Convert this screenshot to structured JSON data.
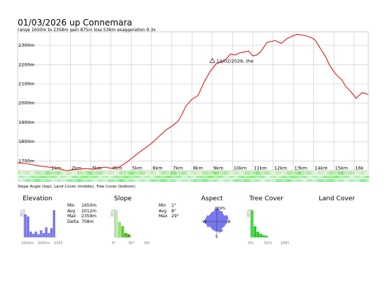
{
  "header": {
    "title": "01/03/2026 up Connemara",
    "stats": "range 1650m to 2358m  gain 875m  loss 536m  exaggeration 9.3x"
  },
  "chart_data": [
    {
      "type": "line",
      "xlabel": "",
      "ylabel": "",
      "ylim": [
        1650,
        2370
      ],
      "xlim": [
        -1.1,
        16.2
      ],
      "y_ticks": [
        "1700m",
        "1800m",
        "1900m",
        "2000m",
        "2100m",
        "2200m",
        "2300m"
      ],
      "y_tick_values": [
        1700,
        1800,
        1900,
        2000,
        2100,
        2200,
        2300
      ],
      "x_ticks": [
        "1km",
        "2km",
        "3km",
        "4km",
        "5km",
        "6km",
        "7km",
        "8km",
        "9km",
        "10km",
        "11km",
        "12km",
        "13km",
        "14km",
        "15km",
        "16k"
      ],
      "x_tick_values": [
        0.5,
        1.5,
        2.5,
        3.5,
        4.5,
        5.5,
        6.5,
        7.5,
        8.5,
        9.5,
        10.5,
        11.5,
        12.5,
        13.5,
        14.5,
        15.5
      ],
      "grid": true,
      "line_color": "#dd1c1c",
      "series": [
        {
          "x": [
            -1.1,
            -0.6,
            -0.1,
            0.3,
            0.8,
            1.3,
            1.7,
            2.2,
            2.7,
            3.2,
            3.5,
            3.9,
            4.3,
            4.6,
            4.9,
            5.3,
            5.6,
            5.9,
            6.2,
            6.5,
            6.8,
            7.0,
            7.2,
            7.5,
            7.8,
            8.1,
            8.4,
            8.7,
            9.0,
            9.2,
            9.4,
            9.6,
            9.9,
            10.1,
            10.3,
            10.5,
            10.7,
            10.9,
            11.2,
            11.6,
            11.9,
            12.2,
            12.5,
            12.7,
            13.1,
            13.4,
            13.6,
            13.8,
            14.1,
            14.3,
            14.6,
            14.9,
            15.1,
            15.3,
            15.6,
            15.9,
            16.2
          ],
          "y": [
            1690,
            1685,
            1675,
            1670,
            1663,
            1650,
            1655,
            1660,
            1658,
            1668,
            1662,
            1668,
            1695,
            1720,
            1745,
            1775,
            1800,
            1830,
            1860,
            1880,
            1905,
            1940,
            1985,
            2020,
            2040,
            2110,
            2165,
            2205,
            2215,
            2230,
            2255,
            2250,
            2262,
            2266,
            2270,
            2245,
            2250,
            2268,
            2315,
            2325,
            2310,
            2335,
            2350,
            2358,
            2350,
            2340,
            2325,
            2290,
            2240,
            2195,
            2150,
            2120,
            2085,
            2065,
            2025,
            2055,
            2045
          ]
        }
      ],
      "annotations": [
        {
          "text": "14/02/2026, the",
          "x": 8.5,
          "y": 2220
        }
      ]
    },
    {
      "type": "bar",
      "title": "Elevation",
      "ylabel": "39%",
      "x_ticks": [
        "1650m",
        "2005m",
        "2359m"
      ],
      "values": [
        33,
        30,
        8,
        5,
        8,
        4,
        10,
        6,
        14,
        6,
        13,
        39
      ],
      "color": "#7777ee"
    },
    {
      "type": "bar",
      "title": "Slope",
      "ylabel": "39%",
      "x_ticks": [
        "0°",
        "30°",
        "60°"
      ],
      "values": [
        39,
        22,
        16,
        6,
        4
      ],
      "color": "#88dd55"
    },
    {
      "type": "pie",
      "title": "Aspect",
      "directions": [
        "N",
        "E",
        "S",
        "W"
      ],
      "max_label": "19%",
      "color": "#7777ee"
    },
    {
      "type": "bar",
      "title": "Tree Cover",
      "ylabel": "40%",
      "x_ticks": [
        "0%",
        "50%",
        "100%"
      ],
      "values": [
        40,
        16,
        8,
        5,
        3,
        2
      ],
      "color": "#22cc22"
    }
  ],
  "strips_caption": "Slope Angle (top), Land Cover (middle), Tree Cover (bottom)",
  "panels": {
    "elevation": {
      "title": "Elevation",
      "stats": [
        {
          "label": "Min",
          "value": "1650m"
        },
        {
          "label": "Avg",
          "value": "2012m"
        },
        {
          "label": "Max",
          "value": "2359m"
        },
        {
          "label": "Delta",
          "value": "708m"
        }
      ]
    },
    "slope": {
      "title": "Slope",
      "stats": [
        {
          "label": "Min",
          "value": "1°"
        },
        {
          "label": "Avg",
          "value": "8°"
        },
        {
          "label": "Max",
          "value": "29°"
        }
      ]
    },
    "aspect": {
      "title": "Aspect"
    },
    "tree_cover": {
      "title": "Tree Cover"
    },
    "land_cover": {
      "title": "Land Cover"
    }
  },
  "colors": {
    "profile_line": "#dd1c1c",
    "elevation_bars": "#7777ee",
    "slope_bars": "#88dd55",
    "tree_bars": "#22cc22",
    "aspect_fill": "#7777ee"
  }
}
